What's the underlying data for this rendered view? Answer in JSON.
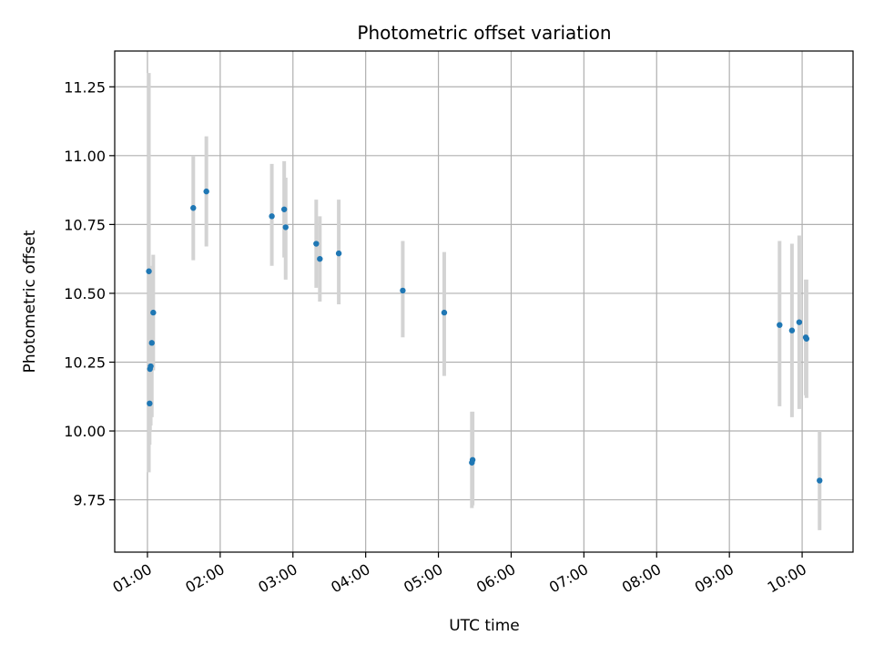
{
  "chart_data": {
    "type": "scatter",
    "title": "Photometric offset variation",
    "xlabel": "UTC time",
    "ylabel": "Photometric offset",
    "x_tick_labels": [
      "01:00",
      "02:00",
      "03:00",
      "04:00",
      "05:00",
      "06:00",
      "07:00",
      "08:00",
      "09:00",
      "10:00"
    ],
    "x_ticks_hours": [
      1,
      2,
      3,
      4,
      5,
      6,
      7,
      8,
      9,
      10
    ],
    "xlim_hours": [
      0.55,
      10.7
    ],
    "y_ticks": [
      9.75,
      10.0,
      10.25,
      10.5,
      10.75,
      11.0,
      11.25
    ],
    "y_tick_labels": [
      "9.75",
      "10.00",
      "10.25",
      "10.50",
      "10.75",
      "11.00",
      "11.25"
    ],
    "ylim": [
      9.56,
      11.38
    ],
    "grid": true,
    "colors": {
      "point": "#1f77b4",
      "errorbar": "#d3d3d3",
      "grid": "#b0b0b0"
    },
    "points": [
      {
        "x": 1.02,
        "y": 10.58,
        "err_low": 9.85,
        "err_high": 11.3
      },
      {
        "x": 1.03,
        "y": 10.1,
        "err_low": 9.95,
        "err_high": 10.25
      },
      {
        "x": 1.035,
        "y": 10.225,
        "err_low": 10.0,
        "err_high": 10.45
      },
      {
        "x": 1.045,
        "y": 10.235,
        "err_low": 10.02,
        "err_high": 10.45
      },
      {
        "x": 1.06,
        "y": 10.32,
        "err_low": 10.05,
        "err_high": 10.6
      },
      {
        "x": 1.08,
        "y": 10.43,
        "err_low": 10.22,
        "err_high": 10.64
      },
      {
        "x": 1.63,
        "y": 10.81,
        "err_low": 10.62,
        "err_high": 11.0
      },
      {
        "x": 1.81,
        "y": 10.87,
        "err_low": 10.67,
        "err_high": 11.07
      },
      {
        "x": 2.71,
        "y": 10.78,
        "err_low": 10.6,
        "err_high": 10.97
      },
      {
        "x": 2.88,
        "y": 10.805,
        "err_low": 10.63,
        "err_high": 10.98
      },
      {
        "x": 2.9,
        "y": 10.74,
        "err_low": 10.55,
        "err_high": 10.92
      },
      {
        "x": 3.32,
        "y": 10.68,
        "err_low": 10.52,
        "err_high": 10.84
      },
      {
        "x": 3.37,
        "y": 10.625,
        "err_low": 10.47,
        "err_high": 10.78
      },
      {
        "x": 3.63,
        "y": 10.645,
        "err_low": 10.46,
        "err_high": 10.84
      },
      {
        "x": 4.51,
        "y": 10.51,
        "err_low": 10.34,
        "err_high": 10.69
      },
      {
        "x": 5.08,
        "y": 10.43,
        "err_low": 10.2,
        "err_high": 10.65
      },
      {
        "x": 5.46,
        "y": 9.885,
        "err_low": 9.72,
        "err_high": 10.07
      },
      {
        "x": 5.47,
        "y": 9.895,
        "err_low": 9.73,
        "err_high": 10.07
      },
      {
        "x": 9.69,
        "y": 10.385,
        "err_low": 10.09,
        "err_high": 10.69
      },
      {
        "x": 9.86,
        "y": 10.365,
        "err_low": 10.05,
        "err_high": 10.68
      },
      {
        "x": 9.96,
        "y": 10.395,
        "err_low": 10.08,
        "err_high": 10.71
      },
      {
        "x": 10.05,
        "y": 10.34,
        "err_low": 10.13,
        "err_high": 10.55
      },
      {
        "x": 10.06,
        "y": 10.335,
        "err_low": 10.12,
        "err_high": 10.55
      },
      {
        "x": 10.24,
        "y": 9.82,
        "err_low": 9.64,
        "err_high": 10.0
      }
    ]
  }
}
